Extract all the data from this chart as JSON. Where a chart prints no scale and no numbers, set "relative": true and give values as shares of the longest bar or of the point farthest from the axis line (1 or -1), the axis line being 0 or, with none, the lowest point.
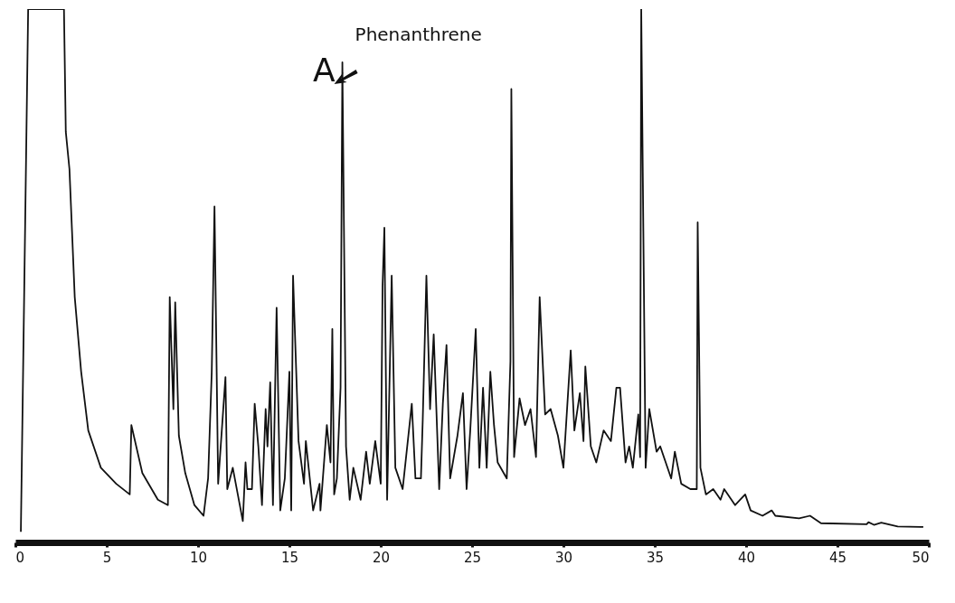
{
  "chart_data": {
    "type": "line",
    "relative": true,
    "xlim": [
      0,
      50
    ],
    "xticks": [
      0,
      5,
      10,
      15,
      20,
      25,
      30,
      35,
      40,
      45,
      50
    ],
    "grid": false,
    "marker": "none",
    "line_style": "solid",
    "annotations": [
      {
        "text": "Phenanthrene",
        "x": 17.9,
        "y": 0.9
      },
      "A"
    ],
    "series": [
      {
        "color": "#111111",
        "x": [
          0.3,
          0.7,
          2.66,
          2.76,
          2.96,
          3.25,
          3.6,
          3.99,
          4.68,
          5.52,
          6.26,
          6.35,
          6.95,
          7.8,
          8.35,
          8.45,
          8.65,
          8.75,
          8.95,
          9.3,
          9.8,
          10.3,
          10.55,
          10.75,
          10.9,
          11.1,
          11.5,
          11.6,
          11.9,
          12.45,
          12.6,
          12.7,
          12.95,
          13.1,
          13.3,
          13.5,
          13.7,
          13.8,
          13.95,
          14.1,
          14.3,
          14.5,
          14.75,
          15.0,
          15.1,
          15.2,
          15.5,
          15.8,
          15.9,
          16.3,
          16.65,
          16.7,
          17.05,
          17.25,
          17.35,
          17.45,
          17.6,
          17.8,
          17.9,
          18.1,
          18.3,
          18.5,
          18.9,
          19.2,
          19.4,
          19.7,
          20.0,
          20.1,
          20.2,
          20.35,
          20.6,
          20.8,
          21.2,
          21.7,
          21.9,
          22.2,
          22.3,
          22.5,
          22.7,
          22.9,
          23.2,
          23.4,
          23.6,
          23.8,
          24.2,
          24.5,
          24.7,
          24.9,
          25.2,
          25.4,
          25.6,
          25.8,
          26.0,
          26.2,
          26.4,
          26.9,
          27.1,
          27.15,
          27.3,
          27.6,
          27.9,
          28.2,
          28.5,
          28.7,
          29.0,
          29.3,
          29.7,
          30.0,
          30.4,
          30.6,
          30.9,
          31.1,
          31.2,
          31.5,
          31.8,
          32.2,
          32.6,
          32.9,
          33.1,
          33.4,
          33.6,
          33.8,
          34.1,
          34.2,
          34.26,
          34.5,
          34.7,
          35.1,
          35.3,
          35.6,
          35.9,
          36.1,
          36.45,
          36.95,
          37.3,
          37.35,
          37.5,
          37.8,
          38.2,
          38.6,
          38.8,
          39.4,
          39.95,
          40.25,
          40.9,
          41.4,
          41.6,
          42.9,
          43.5,
          44.1,
          46.6,
          46.7,
          47.0,
          47.4,
          48.3,
          49.7
        ],
        "values": [
          0.02,
          1.0,
          1.0,
          0.77,
          0.7,
          0.46,
          0.32,
          0.21,
          0.14,
          0.11,
          0.09,
          0.22,
          0.13,
          0.08,
          0.07,
          0.46,
          0.25,
          0.45,
          0.2,
          0.13,
          0.07,
          0.05,
          0.12,
          0.32,
          0.63,
          0.11,
          0.31,
          0.1,
          0.14,
          0.04,
          0.15,
          0.1,
          0.1,
          0.26,
          0.18,
          0.07,
          0.25,
          0.18,
          0.3,
          0.07,
          0.44,
          0.06,
          0.12,
          0.32,
          0.06,
          0.5,
          0.19,
          0.11,
          0.19,
          0.06,
          0.11,
          0.06,
          0.22,
          0.15,
          0.4,
          0.09,
          0.12,
          0.29,
          0.9,
          0.18,
          0.08,
          0.14,
          0.08,
          0.17,
          0.11,
          0.19,
          0.11,
          0.48,
          0.59,
          0.08,
          0.5,
          0.14,
          0.1,
          0.26,
          0.12,
          0.12,
          0.23,
          0.5,
          0.25,
          0.39,
          0.1,
          0.26,
          0.37,
          0.12,
          0.2,
          0.28,
          0.1,
          0.21,
          0.4,
          0.14,
          0.29,
          0.14,
          0.32,
          0.22,
          0.15,
          0.12,
          0.34,
          0.85,
          0.16,
          0.27,
          0.22,
          0.25,
          0.16,
          0.46,
          0.24,
          0.25,
          0.2,
          0.14,
          0.36,
          0.21,
          0.28,
          0.19,
          0.33,
          0.18,
          0.15,
          0.21,
          0.19,
          0.29,
          0.29,
          0.15,
          0.18,
          0.14,
          0.24,
          0.16,
          1.0,
          0.14,
          0.25,
          0.17,
          0.18,
          0.15,
          0.12,
          0.17,
          0.11,
          0.1,
          0.1,
          0.6,
          0.14,
          0.09,
          0.1,
          0.08,
          0.1,
          0.07,
          0.09,
          0.06,
          0.05,
          0.06,
          0.05,
          0.045,
          0.05,
          0.036,
          0.034,
          0.038,
          0.033,
          0.037,
          0.03,
          0.029
        ]
      }
    ]
  }
}
